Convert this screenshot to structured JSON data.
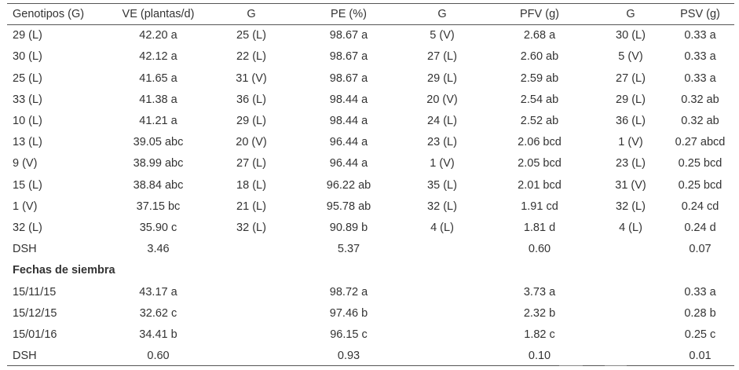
{
  "table": {
    "headers": [
      "Genotipos (G)",
      "VE (plantas/d)",
      "G",
      "PE (%)",
      "G",
      "PFV (g)",
      "G",
      "PSV (g)"
    ],
    "genotype_rows": [
      [
        "29 (L)",
        "42.20 a",
        "25 (L)",
        "98.67 a",
        "5 (V)",
        "2.68 a",
        "30 (L)",
        "0.33 a"
      ],
      [
        "30 (L)",
        "42.12 a",
        "22 (L)",
        "98.67 a",
        "27 (L)",
        "2.60 ab",
        "5 (V)",
        "0.33 a"
      ],
      [
        "25 (L)",
        "41.65 a",
        "31 (V)",
        "98.67 a",
        "29 (L)",
        "2.59 ab",
        "27 (L)",
        "0.33 a"
      ],
      [
        "33 (L)",
        "41.38 a",
        "36 (L)",
        "98.44 a",
        "20 (V)",
        "2.54 ab",
        "29 (L)",
        "0.32 ab"
      ],
      [
        "10 (L)",
        "41.21 a",
        "29 (L)",
        "98.44 a",
        "24 (L)",
        "2.52 ab",
        "36 (L)",
        "0.32 ab"
      ],
      [
        "13 (L)",
        "39.05 abc",
        "20 (V)",
        "96.44 a",
        "23 (L)",
        "2.06 bcd",
        "1 (V)",
        "0.27 abcd"
      ],
      [
        "9 (V)",
        "38.99 abc",
        "27 (L)",
        "96.44 a",
        "1 (V)",
        "2.05 bcd",
        "23 (L)",
        "0.25 bcd"
      ],
      [
        "15 (L)",
        "38.84 abc",
        "18 (L)",
        "96.22 ab",
        "35 (L)",
        "2.01 bcd",
        "31 (V)",
        "0.25 bcd"
      ],
      [
        "1 (V)",
        "37.15 bc",
        "21 (L)",
        "95.78 ab",
        "32 (L)",
        "1.91 cd",
        "32 (L)",
        "0.24 cd"
      ],
      [
        "32 (L)",
        "35.90 c",
        "32 (L)",
        "90.89 b",
        "4 (L)",
        "1.81 d",
        "4 (L)",
        "0.24 d"
      ],
      [
        "DSH",
        "3.46",
        "",
        "5.37",
        "",
        "0.60",
        "",
        "0.07"
      ]
    ],
    "section_title": "Fechas de siembra",
    "date_rows": [
      [
        "15/11/15",
        "43.17 a",
        "",
        "98.72 a",
        "",
        "3.73 a",
        "",
        "0.33 a"
      ],
      [
        "15/12/15",
        "32.62 c",
        "",
        "97.46 b",
        "",
        "2.32 b",
        "",
        "0.28 b"
      ],
      [
        "15/01/16",
        "34.41 b",
        "",
        "96.15 c",
        "",
        "1.82 c",
        "",
        "0.25 c"
      ],
      [
        "DSH",
        "0.60",
        "",
        "0.93",
        "",
        "0.10",
        "",
        "0.01"
      ]
    ]
  }
}
